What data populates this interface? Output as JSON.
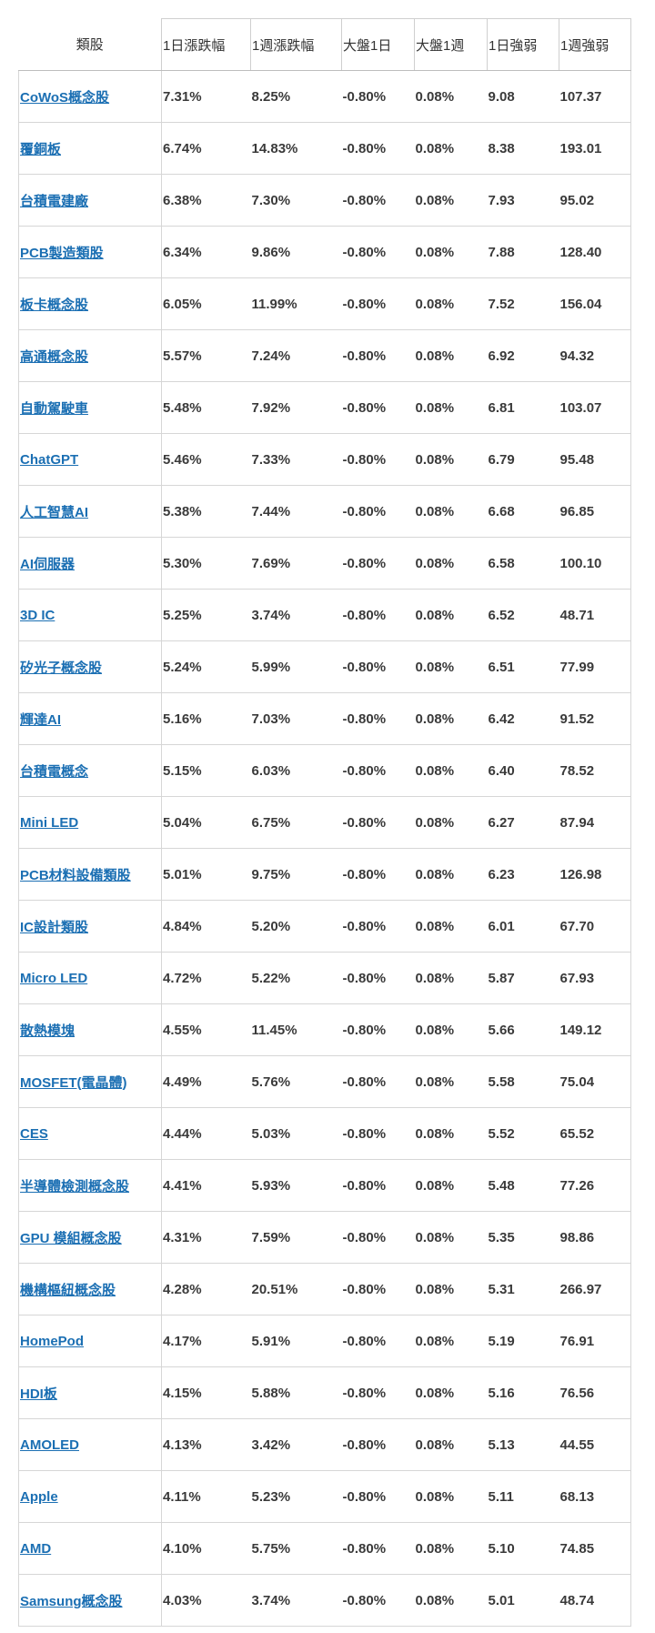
{
  "table": {
    "headers": [
      "類股",
      "1日漲跌幅",
      "1週漲跌幅",
      "大盤1日",
      "大盤1週",
      "1日強弱",
      "1週強弱"
    ],
    "rows": [
      [
        "CoWoS概念股",
        "7.31%",
        "8.25%",
        "-0.80%",
        "0.08%",
        "9.08",
        "107.37"
      ],
      [
        "覆銅板",
        "6.74%",
        "14.83%",
        "-0.80%",
        "0.08%",
        "8.38",
        "193.01"
      ],
      [
        "台積電建廠",
        "6.38%",
        "7.30%",
        "-0.80%",
        "0.08%",
        "7.93",
        "95.02"
      ],
      [
        "PCB製造類股",
        "6.34%",
        "9.86%",
        "-0.80%",
        "0.08%",
        "7.88",
        "128.40"
      ],
      [
        "板卡概念股",
        "6.05%",
        "11.99%",
        "-0.80%",
        "0.08%",
        "7.52",
        "156.04"
      ],
      [
        "高通概念股",
        "5.57%",
        "7.24%",
        "-0.80%",
        "0.08%",
        "6.92",
        "94.32"
      ],
      [
        "自動駕駛車",
        "5.48%",
        "7.92%",
        "-0.80%",
        "0.08%",
        "6.81",
        "103.07"
      ],
      [
        "ChatGPT",
        "5.46%",
        "7.33%",
        "-0.80%",
        "0.08%",
        "6.79",
        "95.48"
      ],
      [
        "人工智慧AI",
        "5.38%",
        "7.44%",
        "-0.80%",
        "0.08%",
        "6.68",
        "96.85"
      ],
      [
        "AI伺服器",
        "5.30%",
        "7.69%",
        "-0.80%",
        "0.08%",
        "6.58",
        "100.10"
      ],
      [
        "3D IC",
        "5.25%",
        "3.74%",
        "-0.80%",
        "0.08%",
        "6.52",
        "48.71"
      ],
      [
        "矽光子概念股",
        "5.24%",
        "5.99%",
        "-0.80%",
        "0.08%",
        "6.51",
        "77.99"
      ],
      [
        "輝達AI",
        "5.16%",
        "7.03%",
        "-0.80%",
        "0.08%",
        "6.42",
        "91.52"
      ],
      [
        "台積電概念",
        "5.15%",
        "6.03%",
        "-0.80%",
        "0.08%",
        "6.40",
        "78.52"
      ],
      [
        "Mini LED",
        "5.04%",
        "6.75%",
        "-0.80%",
        "0.08%",
        "6.27",
        "87.94"
      ],
      [
        "PCB材料設備類股",
        "5.01%",
        "9.75%",
        "-0.80%",
        "0.08%",
        "6.23",
        "126.98"
      ],
      [
        "IC設計類股",
        "4.84%",
        "5.20%",
        "-0.80%",
        "0.08%",
        "6.01",
        "67.70"
      ],
      [
        "Micro LED",
        "4.72%",
        "5.22%",
        "-0.80%",
        "0.08%",
        "5.87",
        "67.93"
      ],
      [
        "散熱模塊",
        "4.55%",
        "11.45%",
        "-0.80%",
        "0.08%",
        "5.66",
        "149.12"
      ],
      [
        "MOSFET(電晶體)",
        "4.49%",
        "5.76%",
        "-0.80%",
        "0.08%",
        "5.58",
        "75.04"
      ],
      [
        "CES",
        "4.44%",
        "5.03%",
        "-0.80%",
        "0.08%",
        "5.52",
        "65.52"
      ],
      [
        "半導體檢測概念股",
        "4.41%",
        "5.93%",
        "-0.80%",
        "0.08%",
        "5.48",
        "77.26"
      ],
      [
        "GPU 模組概念股",
        "4.31%",
        "7.59%",
        "-0.80%",
        "0.08%",
        "5.35",
        "98.86"
      ],
      [
        "機構樞紐概念股",
        "4.28%",
        "20.51%",
        "-0.80%",
        "0.08%",
        "5.31",
        "266.97"
      ],
      [
        "HomePod",
        "4.17%",
        "5.91%",
        "-0.80%",
        "0.08%",
        "5.19",
        "76.91"
      ],
      [
        "HDI板",
        "4.15%",
        "5.88%",
        "-0.80%",
        "0.08%",
        "5.16",
        "76.56"
      ],
      [
        "AMOLED",
        "4.13%",
        "3.42%",
        "-0.80%",
        "0.08%",
        "5.13",
        "44.55"
      ],
      [
        "Apple",
        "4.11%",
        "5.23%",
        "-0.80%",
        "0.08%",
        "5.11",
        "68.13"
      ],
      [
        "AMD",
        "4.10%",
        "5.75%",
        "-0.80%",
        "0.08%",
        "5.10",
        "74.85"
      ],
      [
        "Samsung概念股",
        "4.03%",
        "3.74%",
        "-0.80%",
        "0.08%",
        "5.01",
        "48.74"
      ]
    ]
  },
  "colors": {
    "link": "#1b6fb3",
    "text": "#3a3a3a",
    "border": "#d6d6d6"
  }
}
